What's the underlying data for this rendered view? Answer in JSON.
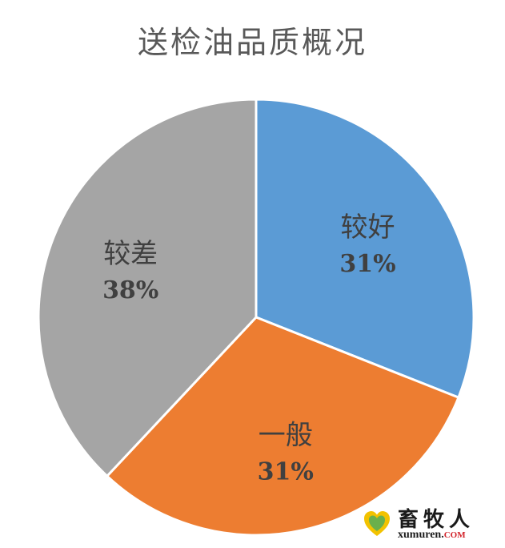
{
  "chart_data": {
    "type": "pie",
    "title": "送检油品质概况",
    "slices": [
      {
        "label": "较好",
        "value": 31,
        "value_label": "31%",
        "color": "#5b9bd5"
      },
      {
        "label": "一般",
        "value": 31,
        "value_label": "31%",
        "color": "#ed7d31"
      },
      {
        "label": "较差",
        "value": 38,
        "value_label": "38%",
        "color": "#a5a5a5"
      }
    ],
    "start_angle": "12 o'clock",
    "direction": "clockwise",
    "slice_border_color": "#ffffff",
    "legend": "none"
  },
  "watermark": {
    "text_cn": "畜牧人",
    "text_en": "xumuren.",
    "text_en_suffix": "COM",
    "logo_icon": "heart-logo-icon",
    "logo_colors": [
      "#f2c200",
      "#6ab04c"
    ]
  }
}
